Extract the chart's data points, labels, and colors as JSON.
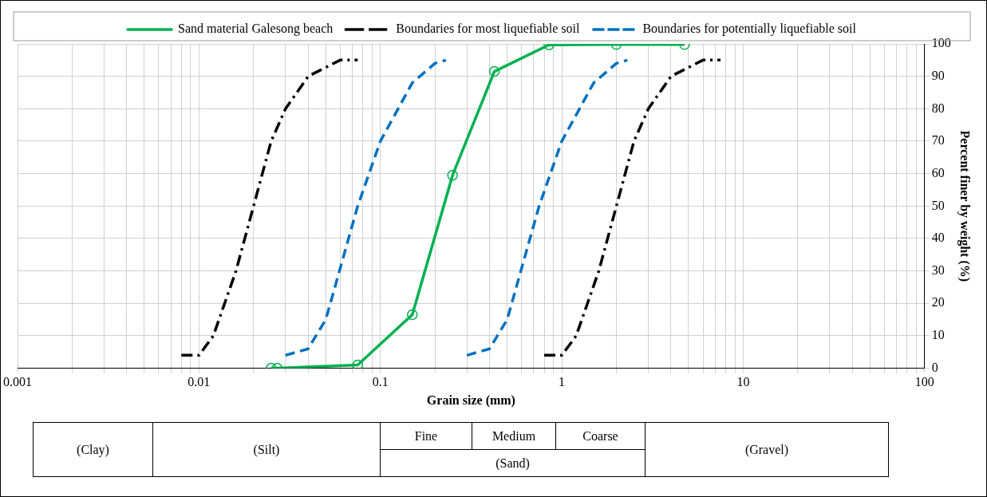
{
  "chart_data": {
    "type": "line",
    "xlabel": "Grain size (mm)",
    "ylabel": "Percent finer by weight (%)",
    "log": "x",
    "xlim": [
      0.001,
      100
    ],
    "ylim": [
      0,
      100
    ],
    "xticks": [
      0.001,
      {
        "value": 0.002,
        "label": null
      },
      {
        "value": 0.003,
        "label": null
      },
      {
        "value": 0.004,
        "label": null
      },
      {
        "value": 0.005,
        "label": null
      },
      {
        "value": 0.006,
        "label": null
      },
      {
        "value": 0.007,
        "label": null
      },
      {
        "value": 0.008,
        "label": null
      },
      {
        "value": 0.009,
        "label": null
      },
      0.01,
      {
        "value": 0.02,
        "label": null
      },
      {
        "value": 0.03,
        "label": null
      },
      {
        "value": 0.04,
        "label": null
      },
      {
        "value": 0.05,
        "label": null
      },
      {
        "value": 0.06,
        "label": null
      },
      {
        "value": 0.07,
        "label": null
      },
      {
        "value": 0.08,
        "label": null
      },
      {
        "value": 0.09,
        "label": null
      },
      0.1,
      {
        "value": 0.2,
        "label": null
      },
      {
        "value": 0.3,
        "label": null
      },
      {
        "value": 0.4,
        "label": null
      },
      {
        "value": 0.5,
        "label": null
      },
      {
        "value": 0.6,
        "label": null
      },
      {
        "value": 0.7,
        "label": null
      },
      {
        "value": 0.8,
        "label": null
      },
      {
        "value": 0.9,
        "label": null
      },
      1,
      {
        "value": 2,
        "label": null
      },
      {
        "value": 3,
        "label": null
      },
      {
        "value": 4,
        "label": null
      },
      {
        "value": 5,
        "label": null
      },
      {
        "value": 6,
        "label": null
      },
      {
        "value": 7,
        "label": null
      },
      {
        "value": 8,
        "label": null
      },
      {
        "value": 9,
        "label": null
      },
      10,
      {
        "value": 20,
        "label": null
      },
      {
        "value": 30,
        "label": null
      },
      {
        "value": 40,
        "label": null
      },
      {
        "value": 50,
        "label": null
      },
      {
        "value": 60,
        "label": null
      },
      {
        "value": 70,
        "label": null
      },
      {
        "value": 80,
        "label": null
      },
      {
        "value": 90,
        "label": null
      },
      100
    ],
    "yticks": [
      0,
      10,
      20,
      30,
      40,
      50,
      60,
      70,
      80,
      90,
      100
    ],
    "grid": true,
    "legend": "top",
    "series": [
      {
        "name": "Sand material Galesong beach",
        "color": "#00b050",
        "marker": "circle",
        "line_style": "solid",
        "x": [
          0.025,
          0.027,
          0.075,
          0.15,
          0.25,
          0.425,
          0.85,
          2,
          4.75
        ],
        "values": [
          0,
          0,
          1,
          16.5,
          59.5,
          91.5,
          99.7,
          99.8,
          99.8
        ]
      },
      {
        "name": "Boundaries for most liquefiable soil",
        "color": "#000000",
        "marker": "none",
        "line_style": "dashdot",
        "x": [
          0.008,
          0.01,
          0.012,
          0.016,
          0.02,
          0.025,
          0.03,
          0.04,
          0.06,
          0.075
        ],
        "values": [
          4,
          4,
          10,
          30,
          50,
          70,
          80,
          90,
          95,
          95
        ]
      },
      {
        "color": "#000000",
        "marker": "none",
        "line_style": "dashdot",
        "x": [
          0.8,
          1,
          1.2,
          1.6,
          2,
          2.5,
          3,
          4,
          6,
          7.5
        ],
        "values": [
          4,
          4,
          10,
          30,
          50,
          70,
          80,
          90,
          95,
          95
        ]
      },
      {
        "name": "Boundaries for potentially liquefiable soil",
        "color": "#0070c0",
        "marker": "none",
        "line_style": "dashed",
        "x": [
          0.03,
          0.04,
          0.05,
          0.075,
          0.1,
          0.15,
          0.2,
          0.23
        ],
        "values": [
          4,
          6,
          15,
          50,
          70,
          88,
          94,
          95
        ]
      },
      {
        "color": "#0070c0",
        "marker": "none",
        "line_style": "dashed",
        "x": [
          0.3,
          0.4,
          0.5,
          0.75,
          1,
          1.5,
          2,
          2.3
        ],
        "values": [
          4,
          6,
          15,
          50,
          70,
          88,
          94,
          95
        ]
      }
    ],
    "annotations": [
      "(Clay)",
      "(Silt)",
      "Fine",
      "Medium",
      "Coarse",
      "(Sand)",
      "(Gravel)"
    ]
  }
}
